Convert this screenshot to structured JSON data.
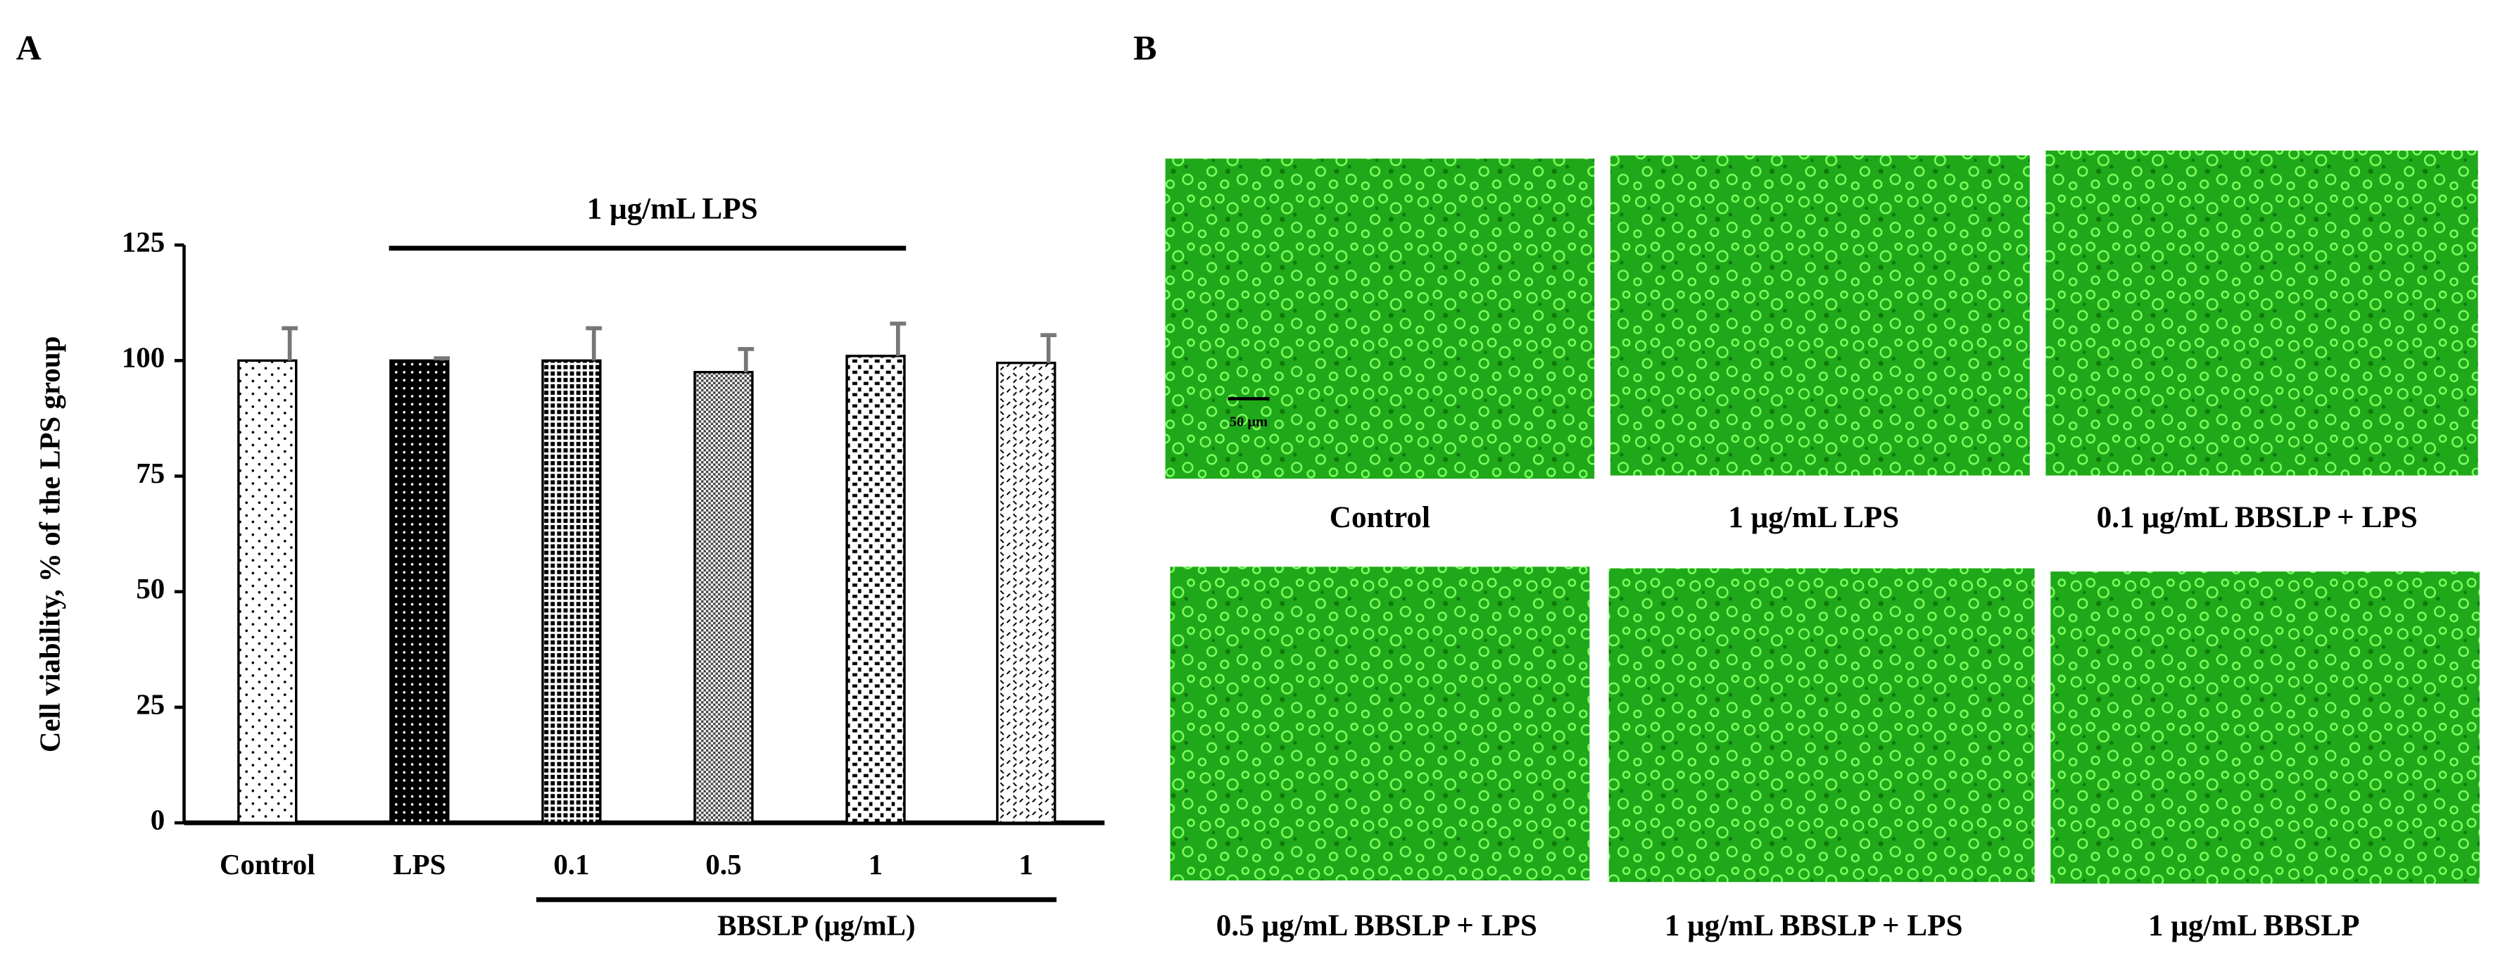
{
  "panel_labels": [
    "A",
    "B"
  ],
  "chart_data": {
    "type": "bar",
    "ylabel": "Cell viability, % of the LPS group",
    "categories": [
      "Control",
      "LPS",
      "0.1",
      "0.5",
      "1",
      "1"
    ],
    "values": [
      100,
      100,
      100,
      97.5,
      101,
      99.5
    ],
    "errors": [
      7,
      0.5,
      7,
      5,
      7,
      6
    ],
    "ylim": [
      0,
      125
    ],
    "yticks": [
      0,
      25,
      50,
      75,
      100,
      125
    ],
    "annotations": [
      "1 μg/mL LPS",
      "BBSLP (μg/mL)"
    ]
  },
  "micrographs": {
    "scale_bar": "50 μm",
    "captions": [
      "Control",
      "1 μg/mL LPS",
      "0.1 μg/mL BBSLP + LPS",
      "0.5 μg/mL BBSLP + LPS",
      "1 μg/mL BBSLP + LPS",
      "1 μg/mL BBSLP"
    ]
  }
}
